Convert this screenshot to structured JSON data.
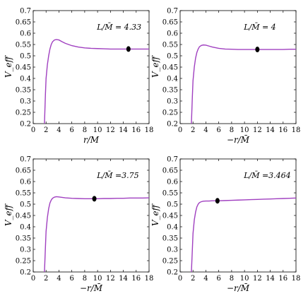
{
  "chart_data": [
    {
      "type": "line",
      "annotation": "L/M̄ = 4.33",
      "xlabel": "r/M",
      "ylabel": "V_eff",
      "xlim": [
        0,
        18
      ],
      "ylim": [
        0.2,
        0.7
      ],
      "xticks": [
        "0",
        "2",
        "4",
        "6",
        "8",
        "10",
        "12",
        "14",
        "16",
        "18"
      ],
      "yticks": [
        "0.2",
        "0.25",
        "0.3",
        "0.35",
        "0.4",
        "0.45",
        "0.5",
        "0.55",
        "0.6",
        "0.65",
        "0.7"
      ],
      "line_color": "#a040c0",
      "marker": {
        "x": 14.8,
        "y": 0.53
      },
      "series": [
        {
          "x": [
            1.75,
            1.9,
            2.0,
            2.2,
            2.4,
            2.6,
            2.8,
            3.0,
            3.3,
            3.6,
            4.0,
            4.5,
            5.0,
            6.0,
            7.0,
            8.0,
            9.0,
            10.0,
            11.0,
            12.0,
            13.0,
            14.0,
            15.0,
            16.0,
            17.0,
            18.0
          ],
          "y": [
            0.2,
            0.33,
            0.4,
            0.46,
            0.5,
            0.53,
            0.55,
            0.562,
            0.57,
            0.572,
            0.57,
            0.562,
            0.555,
            0.545,
            0.539,
            0.535,
            0.533,
            0.532,
            0.531,
            0.53,
            0.53,
            0.53,
            0.53,
            0.53,
            0.53,
            0.53
          ]
        }
      ]
    },
    {
      "type": "line",
      "annotation": "L/M̄ = 4",
      "xlabel": "−r/M̄",
      "ylabel": "V_eff",
      "xlim": [
        0,
        18
      ],
      "ylim": [
        0.2,
        0.7
      ],
      "xticks": [
        "0",
        "2",
        "4",
        "6",
        "8",
        "10",
        "12",
        "14",
        "16",
        "18"
      ],
      "yticks": [
        "0.2",
        "0.25",
        "0.3",
        "0.35",
        "0.4",
        "0.45",
        "0.5",
        "0.55",
        "0.6",
        "0.65",
        "0.7"
      ],
      "line_color": "#a040c0",
      "marker": {
        "x": 12.0,
        "y": 0.528
      },
      "series": [
        {
          "x": [
            1.75,
            1.9,
            2.0,
            2.2,
            2.4,
            2.6,
            2.8,
            3.0,
            3.3,
            3.6,
            4.0,
            4.5,
            5.0,
            6.0,
            7.0,
            8.0,
            9.0,
            10.0,
            11.0,
            12.0,
            13.0,
            14.0,
            15.0,
            16.0,
            17.0,
            18.0
          ],
          "y": [
            0.2,
            0.32,
            0.39,
            0.45,
            0.49,
            0.515,
            0.53,
            0.54,
            0.546,
            0.548,
            0.547,
            0.543,
            0.539,
            0.533,
            0.53,
            0.529,
            0.528,
            0.528,
            0.528,
            0.528,
            0.528,
            0.528,
            0.528,
            0.528,
            0.529,
            0.529
          ]
        }
      ]
    },
    {
      "type": "line",
      "annotation": "L/M̄ =3.75",
      "xlabel": "−r/M̄",
      "ylabel": "V_eff",
      "xlim": [
        0,
        18
      ],
      "ylim": [
        0.2,
        0.7
      ],
      "xticks": [
        "0",
        "2",
        "4",
        "6",
        "8",
        "10",
        "12",
        "14",
        "16",
        "18"
      ],
      "yticks": [
        "0.2",
        "0.25",
        "0.3",
        "0.35",
        "0.4",
        "0.45",
        "0.5",
        "0.55",
        "0.6",
        "0.65",
        "0.7"
      ],
      "line_color": "#a040c0",
      "marker": {
        "x": 9.5,
        "y": 0.524
      },
      "series": [
        {
          "x": [
            1.75,
            1.9,
            2.0,
            2.2,
            2.4,
            2.6,
            2.8,
            3.0,
            3.3,
            3.6,
            4.0,
            4.5,
            5.0,
            6.0,
            7.0,
            8.0,
            9.0,
            10.0,
            11.0,
            12.0,
            13.0,
            14.0,
            15.0,
            16.0,
            17.0,
            18.0
          ],
          "y": [
            0.2,
            0.31,
            0.38,
            0.44,
            0.48,
            0.505,
            0.518,
            0.526,
            0.531,
            0.533,
            0.532,
            0.53,
            0.528,
            0.526,
            0.525,
            0.524,
            0.524,
            0.524,
            0.525,
            0.525,
            0.526,
            0.526,
            0.527,
            0.527,
            0.527,
            0.528
          ]
        }
      ]
    },
    {
      "type": "line",
      "annotation": "L/M̄ =3.464",
      "xlabel": "−r/M̄",
      "ylabel": "V_eff",
      "xlim": [
        0,
        18
      ],
      "ylim": [
        0.2,
        0.7
      ],
      "xticks": [
        "0",
        "2",
        "4",
        "6",
        "8",
        "10",
        "12",
        "14",
        "16",
        "18"
      ],
      "yticks": [
        "0.2",
        "0.25",
        "0.3",
        "0.35",
        "0.4",
        "0.45",
        "0.5",
        "0.55",
        "0.6",
        "0.65",
        "0.7"
      ],
      "line_color": "#a040c0",
      "marker": {
        "x": 5.8,
        "y": 0.515
      },
      "series": [
        {
          "x": [
            1.75,
            1.9,
            2.0,
            2.2,
            2.4,
            2.6,
            2.8,
            3.0,
            3.3,
            3.6,
            4.0,
            4.5,
            5.0,
            6.0,
            7.0,
            8.0,
            9.0,
            10.0,
            11.0,
            12.0,
            13.0,
            14.0,
            15.0,
            16.0,
            17.0,
            18.0
          ],
          "y": [
            0.2,
            0.3,
            0.37,
            0.43,
            0.465,
            0.488,
            0.5,
            0.507,
            0.511,
            0.513,
            0.514,
            0.514,
            0.515,
            0.515,
            0.516,
            0.517,
            0.518,
            0.519,
            0.52,
            0.521,
            0.522,
            0.523,
            0.524,
            0.525,
            0.526,
            0.527
          ]
        }
      ]
    }
  ]
}
